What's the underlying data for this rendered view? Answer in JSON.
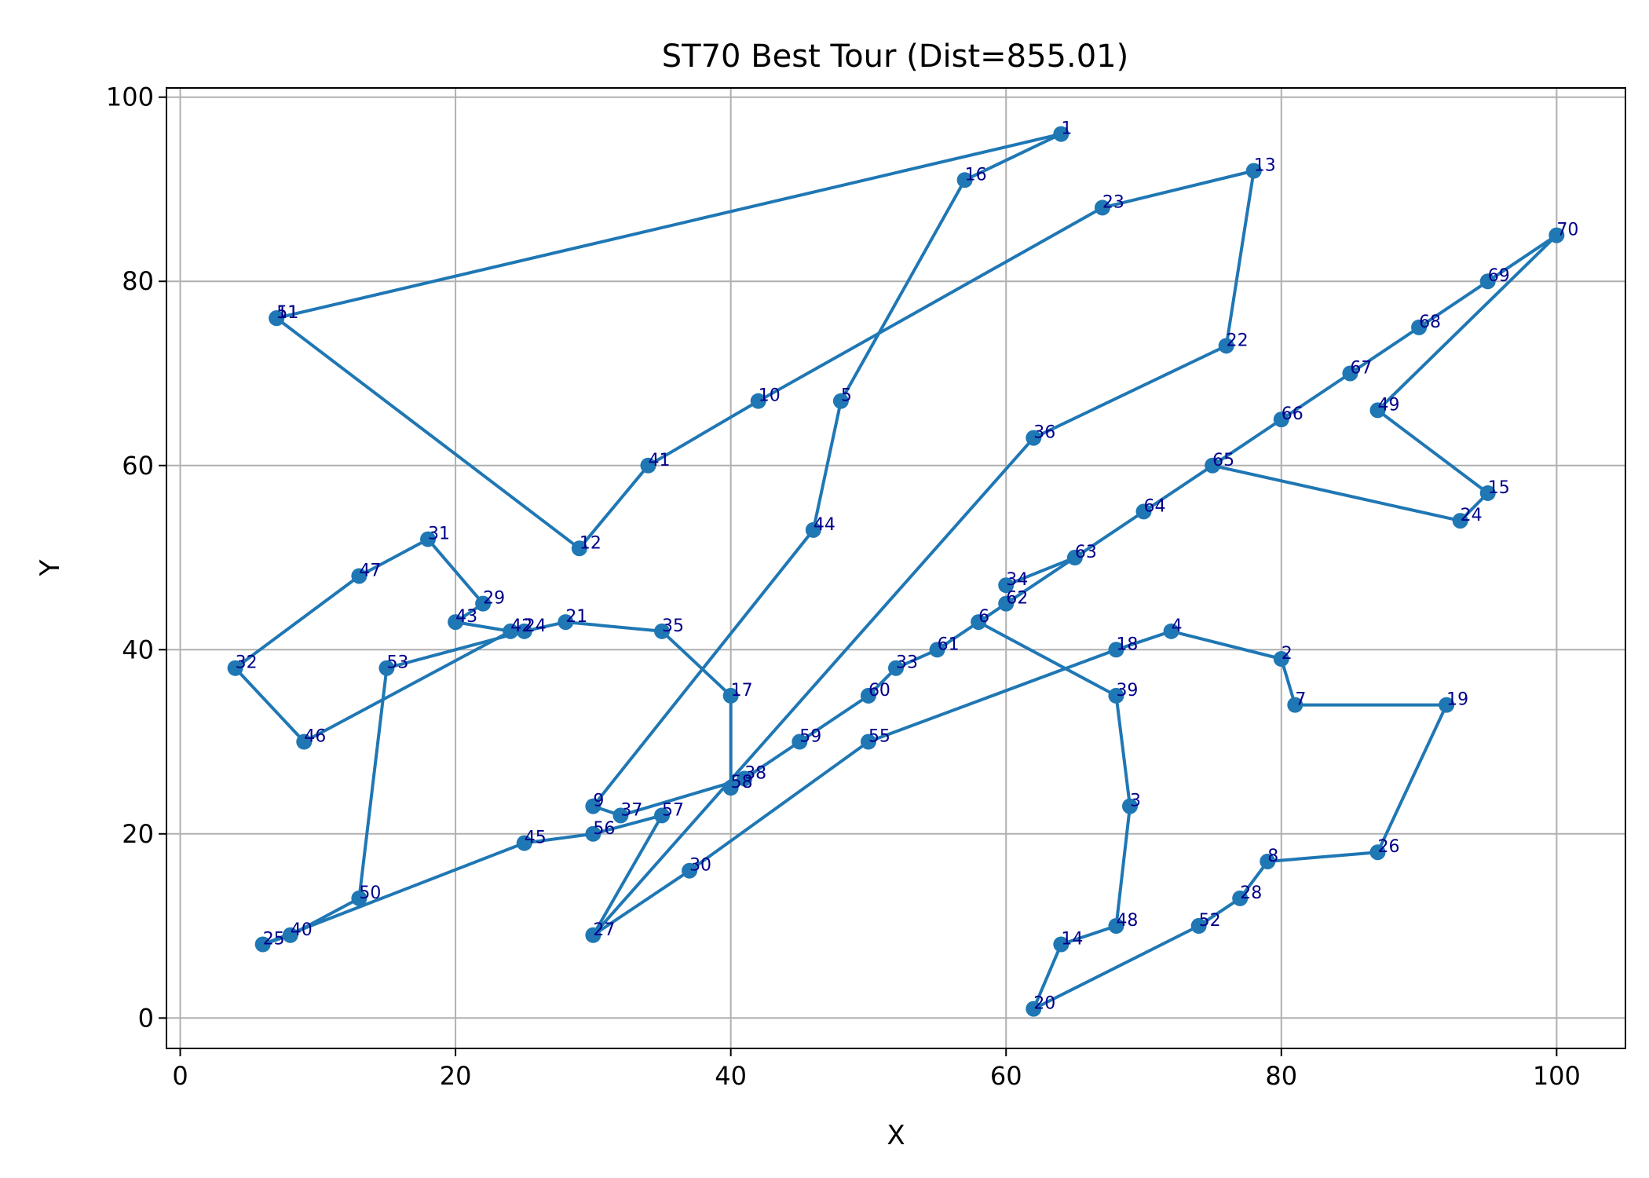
{
  "chart_data": {
    "type": "line",
    "title": "ST70 Best Tour (Dist=855.01)",
    "xlabel": "X",
    "ylabel": "Y",
    "xlim": [
      -1,
      105
    ],
    "ylim": [
      -3.3,
      101
    ],
    "x_ticks": [
      0,
      20,
      40,
      60,
      80,
      100
    ],
    "y_ticks": [
      0,
      20,
      40,
      60,
      80,
      100
    ],
    "grid": true,
    "legend": false,
    "line_color": "#1f77b4",
    "label_color": "#00008b",
    "series": [
      {
        "points": [
          {
            "label": "1",
            "x": 64,
            "y": 96
          },
          {
            "label": "16",
            "x": 57,
            "y": 91
          },
          {
            "label": "5",
            "x": 48,
            "y": 67
          },
          {
            "label": "44",
            "x": 46,
            "y": 53
          },
          {
            "label": "9",
            "x": 30,
            "y": 23
          },
          {
            "label": "37",
            "x": 32,
            "y": 22
          },
          {
            "label": "38",
            "x": 41,
            "y": 26
          },
          {
            "label": "58",
            "x": 40,
            "y": 25
          },
          {
            "label": "17",
            "x": 40,
            "y": 35
          },
          {
            "label": "35",
            "x": 35,
            "y": 42
          },
          {
            "label": "21",
            "x": 28,
            "y": 43
          },
          {
            "label": "24",
            "x": 25,
            "y": 42
          },
          {
            "label": "53",
            "x": 15,
            "y": 38
          },
          {
            "label": "50",
            "x": 13,
            "y": 13
          },
          {
            "label": "40",
            "x": 8,
            "y": 9
          },
          {
            "label": "25",
            "x": 6,
            "y": 8
          },
          {
            "label": "45",
            "x": 25,
            "y": 19
          },
          {
            "label": "56",
            "x": 30,
            "y": 20
          },
          {
            "label": "57",
            "x": 35,
            "y": 22
          },
          {
            "label": "27",
            "x": 30,
            "y": 9
          },
          {
            "label": "36",
            "x": 62,
            "y": 63
          },
          {
            "label": "22",
            "x": 76,
            "y": 73
          },
          {
            "label": "13",
            "x": 78,
            "y": 92
          },
          {
            "label": "23",
            "x": 67,
            "y": 88
          },
          {
            "label": "10",
            "x": 42,
            "y": 67
          },
          {
            "label": "41",
            "x": 34,
            "y": 60
          },
          {
            "label": "12",
            "x": 29,
            "y": 51
          },
          {
            "label": "11",
            "x": 7,
            "y": 76
          },
          {
            "label": "51",
            "x": 7,
            "y": 76
          },
          {
            "label": "1",
            "x": 64,
            "y": 96
          }
        ]
      },
      {
        "points": [
          {
            "label": "42",
            "x": 24,
            "y": 42
          },
          {
            "label": "43",
            "x": 20,
            "y": 43
          },
          {
            "label": "29",
            "x": 22,
            "y": 45
          },
          {
            "label": "31",
            "x": 18,
            "y": 52
          },
          {
            "label": "47",
            "x": 13,
            "y": 48
          },
          {
            "label": "32",
            "x": 4,
            "y": 38
          },
          {
            "label": "46",
            "x": 9,
            "y": 30
          },
          {
            "label": "42",
            "x": 24,
            "y": 42
          }
        ]
      },
      {
        "points": [
          {
            "label": "30",
            "x": 37,
            "y": 16
          },
          {
            "label": "55",
            "x": 50,
            "y": 30
          },
          {
            "label": "18",
            "x": 68,
            "y": 40
          },
          {
            "label": "4",
            "x": 72,
            "y": 42
          },
          {
            "label": "2",
            "x": 80,
            "y": 39
          },
          {
            "label": "7",
            "x": 81,
            "y": 34
          },
          {
            "label": "19",
            "x": 92,
            "y": 34
          },
          {
            "label": "26",
            "x": 87,
            "y": 18
          },
          {
            "label": "8",
            "x": 79,
            "y": 17
          },
          {
            "label": "28",
            "x": 77,
            "y": 13
          },
          {
            "label": "52",
            "x": 74,
            "y": 10
          },
          {
            "label": "20",
            "x": 62,
            "y": 1
          },
          {
            "label": "14",
            "x": 64,
            "y": 8
          },
          {
            "label": "48",
            "x": 68,
            "y": 10
          },
          {
            "label": "3",
            "x": 69,
            "y": 23
          },
          {
            "label": "39",
            "x": 68,
            "y": 35
          },
          {
            "label": "6",
            "x": 58,
            "y": 43
          },
          {
            "label": "62",
            "x": 60,
            "y": 45
          },
          {
            "label": "63",
            "x": 65,
            "y": 50
          },
          {
            "label": "34",
            "x": 60,
            "y": 47
          },
          {
            "label": "63",
            "x": 65,
            "y": 50
          },
          {
            "label": "64",
            "x": 70,
            "y": 55
          },
          {
            "label": "65",
            "x": 75,
            "y": 60
          },
          {
            "label": "24",
            "x": 93,
            "y": 54
          },
          {
            "label": "15",
            "x": 95,
            "y": 57
          },
          {
            "label": "49",
            "x": 87,
            "y": 66
          },
          {
            "label": "70",
            "x": 100,
            "y": 85
          },
          {
            "label": "69",
            "x": 95,
            "y": 80
          },
          {
            "label": "68",
            "x": 90,
            "y": 75
          },
          {
            "label": "67",
            "x": 85,
            "y": 70
          },
          {
            "label": "66",
            "x": 80,
            "y": 65
          },
          {
            "label": "65",
            "x": 75,
            "y": 60
          }
        ]
      },
      {
        "points": [
          {
            "label": "58",
            "x": 40,
            "y": 25
          },
          {
            "label": "59",
            "x": 45,
            "y": 30
          },
          {
            "label": "60",
            "x": 50,
            "y": 35
          },
          {
            "label": "33",
            "x": 52,
            "y": 38
          },
          {
            "label": "61",
            "x": 55,
            "y": 40
          },
          {
            "label": "6",
            "x": 58,
            "y": 43
          }
        ]
      },
      {
        "points": [
          {
            "label": "27",
            "x": 30,
            "y": 9
          },
          {
            "label": "30",
            "x": 37,
            "y": 16
          }
        ]
      }
    ]
  }
}
